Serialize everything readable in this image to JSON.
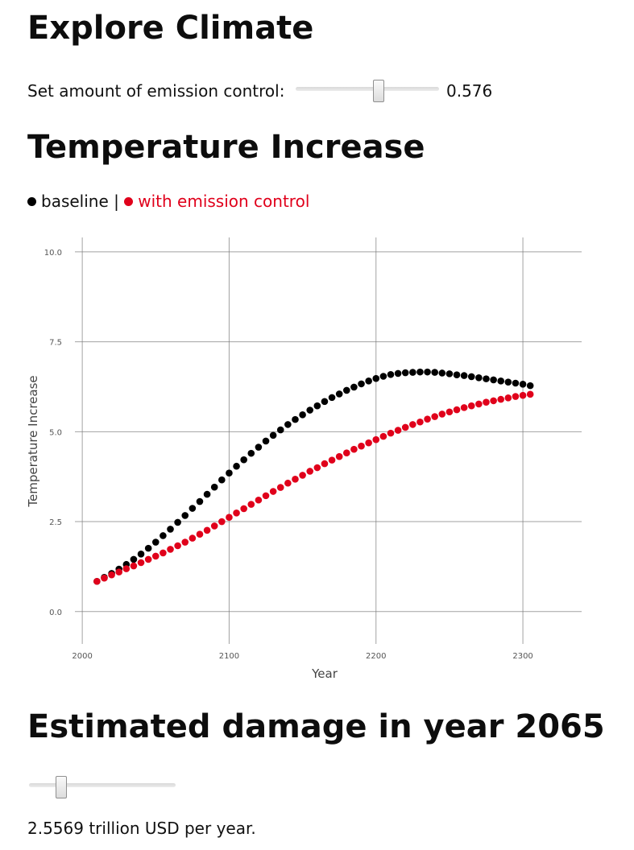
{
  "header": {
    "title": "Explore Climate"
  },
  "emission_control": {
    "label": "Set amount of emission control:",
    "value": 0.576,
    "value_text": "0.576"
  },
  "temperature_section": {
    "title": "Temperature Increase",
    "legend": {
      "baseline_label": "baseline",
      "separator": "|",
      "control_label": "with emission control"
    }
  },
  "colors": {
    "baseline": "#000000",
    "control": "#e0001b",
    "grid": "#7a7a7a"
  },
  "chart_data": {
    "type": "scatter",
    "title": "",
    "xlabel": "Year",
    "ylabel": "Temperature Increase",
    "xlim": [
      1995,
      2340
    ],
    "ylim": [
      -0.9,
      10.4
    ],
    "x_ticks": [
      2000,
      2100,
      2200,
      2300
    ],
    "x_tick_labels": [
      "2000",
      "2100",
      "2200",
      "2300"
    ],
    "y_ticks": [
      0,
      2.5,
      5,
      7.5,
      10
    ],
    "y_tick_labels": [
      "0.0",
      "2.5",
      "5.0",
      "7.5",
      "10.0"
    ],
    "grid": true,
    "x": [
      2010,
      2015,
      2020,
      2025,
      2030,
      2035,
      2040,
      2045,
      2050,
      2055,
      2060,
      2065,
      2070,
      2075,
      2080,
      2085,
      2090,
      2095,
      2100,
      2105,
      2110,
      2115,
      2120,
      2125,
      2130,
      2135,
      2140,
      2145,
      2150,
      2155,
      2160,
      2165,
      2170,
      2175,
      2180,
      2185,
      2190,
      2195,
      2200,
      2205,
      2210,
      2215,
      2220,
      2225,
      2230,
      2235,
      2240,
      2245,
      2250,
      2255,
      2260,
      2265,
      2270,
      2275,
      2280,
      2285,
      2290,
      2295,
      2300,
      2305
    ],
    "series": [
      {
        "name": "baseline",
        "values": [
          0.84,
          0.95,
          1.06,
          1.18,
          1.31,
          1.45,
          1.6,
          1.76,
          1.93,
          2.11,
          2.29,
          2.48,
          2.67,
          2.87,
          3.06,
          3.26,
          3.46,
          3.66,
          3.85,
          4.04,
          4.22,
          4.4,
          4.57,
          4.74,
          4.9,
          5.05,
          5.2,
          5.34,
          5.47,
          5.6,
          5.72,
          5.84,
          5.95,
          6.05,
          6.15,
          6.24,
          6.33,
          6.41,
          6.48,
          6.54,
          6.59,
          6.62,
          6.64,
          6.65,
          6.66,
          6.66,
          6.65,
          6.63,
          6.61,
          6.58,
          6.56,
          6.53,
          6.5,
          6.47,
          6.44,
          6.41,
          6.38,
          6.35,
          6.32,
          6.28
        ]
      },
      {
        "name": "with emission control",
        "values": [
          0.84,
          0.93,
          1.02,
          1.1,
          1.19,
          1.27,
          1.36,
          1.45,
          1.54,
          1.63,
          1.73,
          1.83,
          1.93,
          2.04,
          2.15,
          2.26,
          2.38,
          2.5,
          2.62,
          2.74,
          2.86,
          2.98,
          3.1,
          3.22,
          3.34,
          3.45,
          3.57,
          3.68,
          3.79,
          3.9,
          4.0,
          4.11,
          4.21,
          4.31,
          4.41,
          4.51,
          4.6,
          4.69,
          4.78,
          4.87,
          4.96,
          5.04,
          5.12,
          5.2,
          5.27,
          5.35,
          5.42,
          5.49,
          5.55,
          5.61,
          5.67,
          5.72,
          5.77,
          5.82,
          5.86,
          5.9,
          5.94,
          5.98,
          6.01,
          6.04
        ]
      }
    ]
  },
  "damage_section": {
    "title": "Estimated damage in year 2065",
    "slider_value": 0.22,
    "result_text": "2.5569 trillion USD per year."
  }
}
